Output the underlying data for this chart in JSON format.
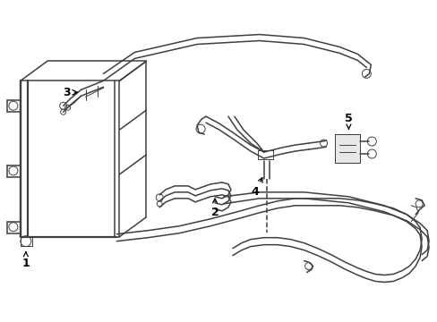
{
  "background_color": "#ffffff",
  "line_color": "#404040",
  "label_color": "#000000",
  "lw_main": 1.1,
  "lw_thin": 0.7,
  "lw_thick": 1.6
}
